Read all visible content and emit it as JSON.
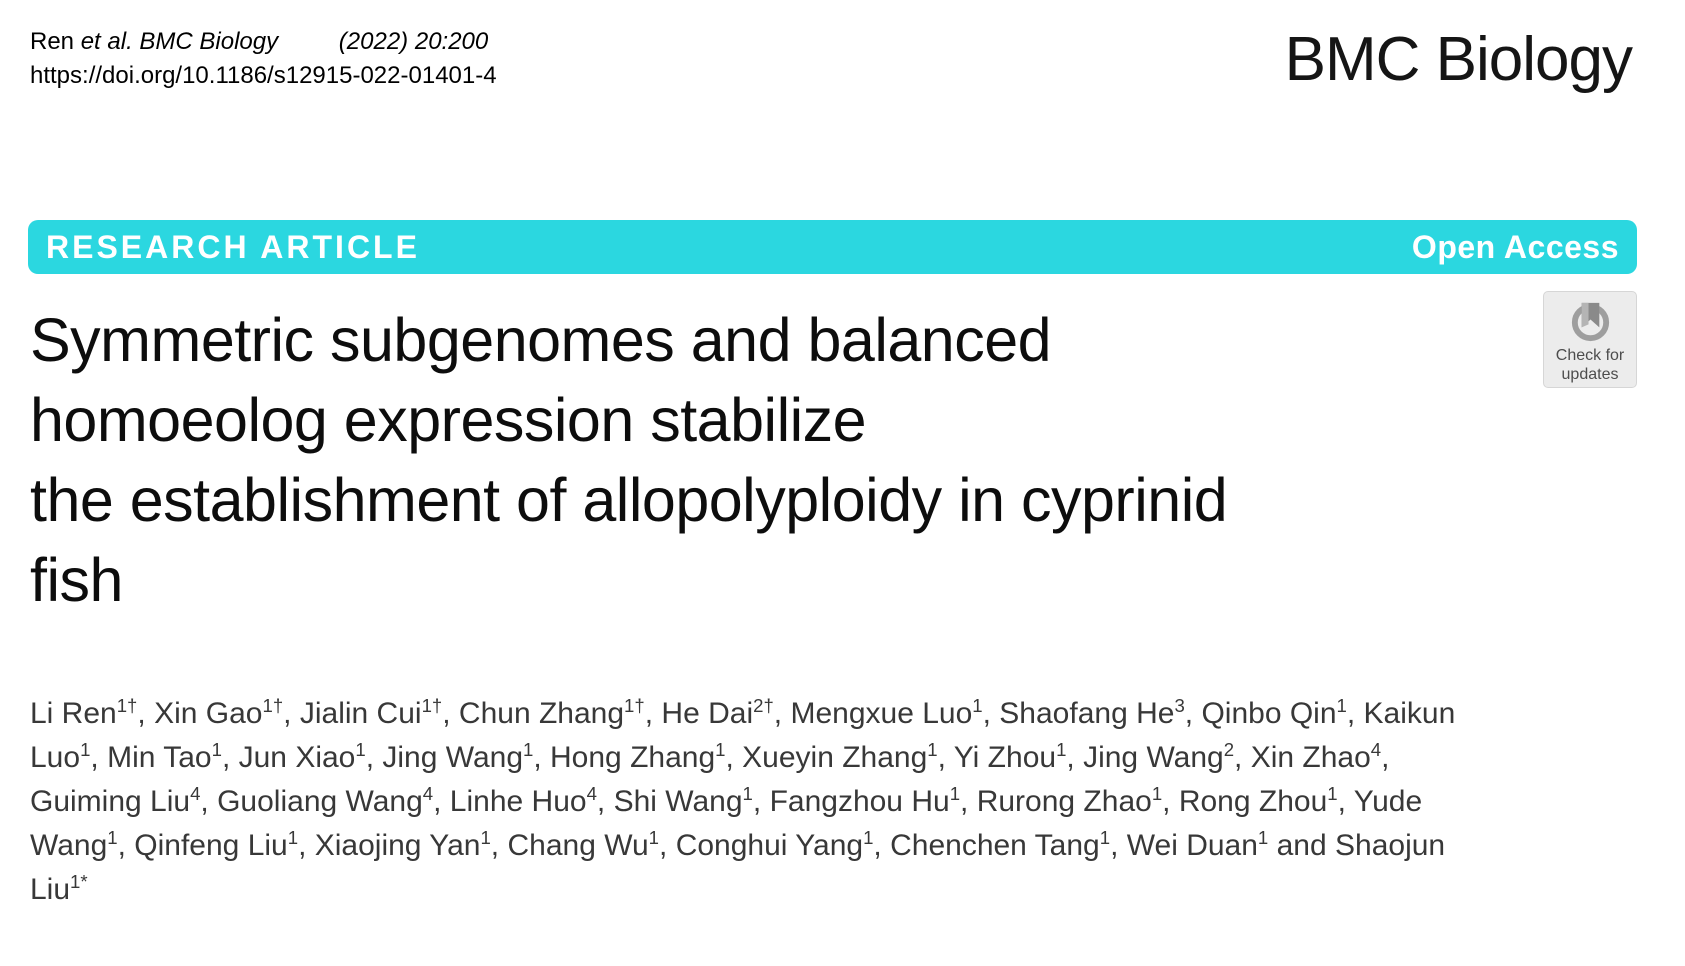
{
  "header": {
    "citation": {
      "authors": "Ren",
      "etal_journal": "et al. BMC Biology",
      "issue": "(2022) 20:200",
      "doi": "https://doi.org/10.1186/s12915-022-01401-4"
    },
    "journal_logo": "BMC Biology"
  },
  "banner": {
    "type_label": "RESEARCH ARTICLE",
    "access_label": "Open Access",
    "background_color": "#2bd7e0",
    "text_color": "#ffffff"
  },
  "update_badge": {
    "line1": "Check for",
    "line2": "updates",
    "icon": "bookmark-in-circle-icon",
    "background_color": "#ececec",
    "icon_ring_color": "#9e9e9e",
    "icon_bookmark_color": "#8a8a8a"
  },
  "article": {
    "title": "Symmetric subgenomes and balanced homoeolog expression stabilize the establishment of allopolyploidy in cyprinid fish",
    "title_lines": [
      "Symmetric subgenomes and balanced",
      "homoeolog expression stabilize",
      "the establishment of allopolyploidy in cyprinid",
      "fish"
    ],
    "separator": ", ",
    "final_separator": " and ",
    "authors": [
      {
        "name": "Li Ren",
        "sup": "1†"
      },
      {
        "name": "Xin Gao",
        "sup": "1†"
      },
      {
        "name": "Jialin Cui",
        "sup": "1†"
      },
      {
        "name": "Chun Zhang",
        "sup": "1†"
      },
      {
        "name": "He Dai",
        "sup": "2†"
      },
      {
        "name": "Mengxue Luo",
        "sup": "1"
      },
      {
        "name": "Shaofang He",
        "sup": "3"
      },
      {
        "name": "Qinbo Qin",
        "sup": "1"
      },
      {
        "name": "Kaikun Luo",
        "sup": "1"
      },
      {
        "name": "Min Tao",
        "sup": "1"
      },
      {
        "name": "Jun Xiao",
        "sup": "1"
      },
      {
        "name": "Jing Wang",
        "sup": "1"
      },
      {
        "name": "Hong Zhang",
        "sup": "1"
      },
      {
        "name": "Xueyin Zhang",
        "sup": "1"
      },
      {
        "name": "Yi Zhou",
        "sup": "1"
      },
      {
        "name": "Jing Wang",
        "sup": "2"
      },
      {
        "name": "Xin Zhao",
        "sup": "4"
      },
      {
        "name": "Guiming Liu",
        "sup": "4"
      },
      {
        "name": "Guoliang Wang",
        "sup": "4"
      },
      {
        "name": "Linhe Huo",
        "sup": "4"
      },
      {
        "name": "Shi Wang",
        "sup": "1"
      },
      {
        "name": "Fangzhou Hu",
        "sup": "1"
      },
      {
        "name": "Rurong Zhao",
        "sup": "1"
      },
      {
        "name": "Rong Zhou",
        "sup": "1"
      },
      {
        "name": "Yude Wang",
        "sup": "1"
      },
      {
        "name": "Qinfeng Liu",
        "sup": "1"
      },
      {
        "name": "Xiaojing Yan",
        "sup": "1"
      },
      {
        "name": "Chang Wu",
        "sup": "1"
      },
      {
        "name": "Conghui Yang",
        "sup": "1"
      },
      {
        "name": "Chenchen Tang",
        "sup": "1"
      },
      {
        "name": "Wei Duan",
        "sup": "1"
      },
      {
        "name": "Shaojun Liu",
        "sup": "1*"
      }
    ]
  }
}
